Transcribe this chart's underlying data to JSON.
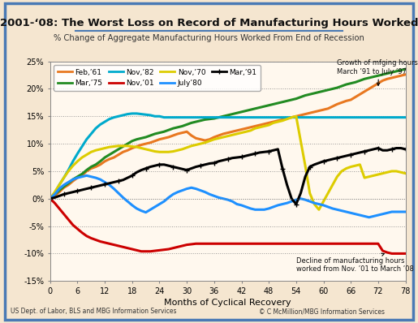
{
  "title": "2001-‘08: The Worst Loss on Record of Manufacturing Hours Worked",
  "subtitle": "% Change of Aggregate Manufacturing Hours Worked From End of Recession",
  "xlabel": "Months of Cyclical Recovery",
  "ylabel": "",
  "footer_left": "US Dept. of Labor, BLS and MBG Information Services",
  "footer_right": "© C McMillion/MBG Information Services",
  "bg_outer": "#f5e6d0",
  "bg_inner": "#fff8ee",
  "border_color": "#4a7ab5",
  "title_color": "#1a1a1a",
  "subtitle_color": "#333333",
  "annotation1": "Growth of mfging hours:\nMarch ’91 to July ’97",
  "annotation2": "Decline of manufacturing hours\nworked from Nov. ’01 to March ’08",
  "xlim": [
    0,
    78
  ],
  "ylim": [
    -0.15,
    0.25
  ],
  "yticks": [
    -0.15,
    -0.1,
    -0.05,
    0.0,
    0.05,
    0.1,
    0.15,
    0.2,
    0.25
  ],
  "ytick_labels": [
    "-15%",
    "-10%",
    "-5%",
    "0%",
    "5%",
    "10%",
    "15%",
    "20%",
    "25%"
  ],
  "xticks": [
    0,
    6,
    12,
    18,
    24,
    30,
    36,
    42,
    48,
    54,
    60,
    66,
    72,
    78
  ],
  "series": [
    {
      "label": "Feb,’61",
      "color": "#e87820",
      "lw": 2.2,
      "data": [
        0,
        0.005,
        0.012,
        0.02,
        0.025,
        0.032,
        0.038,
        0.042,
        0.05,
        0.055,
        0.058,
        0.062,
        0.068,
        0.072,
        0.075,
        0.08,
        0.085,
        0.088,
        0.092,
        0.095,
        0.098,
        0.1,
        0.102,
        0.105,
        0.108,
        0.11,
        0.112,
        0.115,
        0.118,
        0.12,
        0.122,
        0.115,
        0.11,
        0.108,
        0.106,
        0.108,
        0.112,
        0.115,
        0.118,
        0.12,
        0.122,
        0.124,
        0.126,
        0.128,
        0.13,
        0.132,
        0.134,
        0.136,
        0.138,
        0.14,
        0.142,
        0.144,
        0.146,
        0.148,
        0.15,
        0.152,
        0.154,
        0.156,
        0.158,
        0.16,
        0.162,
        0.164,
        0.168,
        0.172,
        0.175,
        0.178,
        0.18,
        0.185,
        0.19,
        0.195,
        0.2,
        0.205,
        0.21,
        0.215,
        0.218,
        0.22,
        0.222,
        0.224,
        0.226
      ]
    },
    {
      "label": "Mar,’75",
      "color": "#228B22",
      "lw": 2.2,
      "data": [
        0,
        0.008,
        0.015,
        0.022,
        0.028,
        0.035,
        0.04,
        0.045,
        0.052,
        0.058,
        0.062,
        0.068,
        0.075,
        0.08,
        0.085,
        0.09,
        0.095,
        0.1,
        0.105,
        0.108,
        0.11,
        0.112,
        0.115,
        0.118,
        0.12,
        0.122,
        0.125,
        0.128,
        0.13,
        0.132,
        0.135,
        0.138,
        0.14,
        0.142,
        0.144,
        0.145,
        0.146,
        0.148,
        0.15,
        0.152,
        0.154,
        0.156,
        0.158,
        0.16,
        0.162,
        0.164,
        0.166,
        0.168,
        0.17,
        0.172,
        0.174,
        0.176,
        0.178,
        0.18,
        0.182,
        0.185,
        0.188,
        0.19,
        0.192,
        0.194,
        0.196,
        0.198,
        0.2,
        0.202,
        0.205,
        0.208,
        0.21,
        0.212,
        0.215,
        0.218,
        0.22,
        0.222,
        0.224,
        0.226,
        0.228,
        0.23,
        0.232,
        0.234,
        0.236
      ]
    },
    {
      "label": "Nov,’82",
      "color": "#00aacc",
      "lw": 2.2,
      "data": [
        0,
        0.01,
        0.025,
        0.038,
        0.052,
        0.068,
        0.082,
        0.095,
        0.108,
        0.118,
        0.128,
        0.135,
        0.14,
        0.145,
        0.148,
        0.15,
        0.152,
        0.154,
        0.155,
        0.155,
        0.154,
        0.153,
        0.152,
        0.15,
        0.15,
        0.148,
        0.148,
        0.148,
        0.148,
        0.148,
        0.148,
        0.148,
        0.148,
        0.148,
        0.148,
        0.148,
        0.148,
        0.148,
        0.148,
        0.148,
        0.148,
        0.148,
        0.148,
        0.148,
        0.148,
        0.148,
        0.148,
        0.148,
        0.148,
        0.148,
        0.148,
        0.148,
        0.148,
        0.148,
        0.148,
        0.148,
        0.148,
        0.148,
        0.148,
        0.148,
        0.148,
        0.148,
        0.148,
        0.148,
        0.148,
        0.148,
        0.148,
        0.148,
        0.148,
        0.148,
        0.148,
        0.148,
        0.148,
        0.148,
        0.148,
        0.148,
        0.148,
        0.148,
        0.148
      ]
    },
    {
      "label": "Nov,’01",
      "color": "#cc0000",
      "lw": 2.2,
      "data": [
        0,
        -0.008,
        -0.018,
        -0.028,
        -0.038,
        -0.048,
        -0.055,
        -0.062,
        -0.068,
        -0.072,
        -0.075,
        -0.078,
        -0.08,
        -0.082,
        -0.084,
        -0.086,
        -0.088,
        -0.09,
        -0.092,
        -0.094,
        -0.096,
        -0.096,
        -0.096,
        -0.095,
        -0.094,
        -0.093,
        -0.092,
        -0.09,
        -0.088,
        -0.086,
        -0.084,
        -0.083,
        -0.082,
        -0.082,
        -0.082,
        -0.082,
        -0.082,
        -0.082,
        -0.082,
        -0.082,
        -0.082,
        -0.082,
        -0.082,
        -0.082,
        -0.082,
        -0.082,
        -0.082,
        -0.082,
        -0.082,
        -0.082,
        -0.082,
        -0.082,
        -0.082,
        -0.082,
        -0.082,
        -0.082,
        -0.082,
        -0.082,
        -0.082,
        -0.082,
        -0.082,
        -0.082,
        -0.082,
        -0.082,
        -0.082,
        -0.082,
        -0.082,
        -0.082,
        -0.082,
        -0.082,
        -0.082,
        -0.082,
        -0.082,
        -0.095,
        -0.098,
        -0.1,
        -0.1,
        -0.1,
        -0.1
      ]
    },
    {
      "label": "Nov,’70",
      "color": "#ddcc00",
      "lw": 2.2,
      "data": [
        0,
        0.012,
        0.025,
        0.038,
        0.05,
        0.06,
        0.068,
        0.075,
        0.08,
        0.085,
        0.088,
        0.09,
        0.092,
        0.094,
        0.095,
        0.096,
        0.096,
        0.096,
        0.095,
        0.094,
        0.092,
        0.09,
        0.088,
        0.086,
        0.085,
        0.085,
        0.085,
        0.086,
        0.088,
        0.09,
        0.093,
        0.096,
        0.098,
        0.1,
        0.102,
        0.105,
        0.108,
        0.11,
        0.112,
        0.114,
        0.116,
        0.118,
        0.12,
        0.122,
        0.124,
        0.128,
        0.13,
        0.132,
        0.134,
        0.138,
        0.14,
        0.142,
        0.145,
        0.148,
        0.15,
        0.105,
        0.06,
        0.01,
        -0.01,
        -0.02,
        -0.005,
        0.01,
        0.025,
        0.04,
        0.05,
        0.055,
        0.058,
        0.06,
        0.062,
        0.038,
        0.04,
        0.042,
        0.044,
        0.046,
        0.048,
        0.05,
        0.05,
        0.048,
        0.046
      ]
    },
    {
      "label": "July’80",
      "color": "#1e90ff",
      "lw": 2.2,
      "data": [
        0,
        0.008,
        0.018,
        0.025,
        0.03,
        0.035,
        0.038,
        0.04,
        0.042,
        0.04,
        0.038,
        0.035,
        0.03,
        0.025,
        0.018,
        0.01,
        0.002,
        -0.005,
        -0.012,
        -0.018,
        -0.022,
        -0.025,
        -0.02,
        -0.015,
        -0.01,
        -0.005,
        0.002,
        0.008,
        0.012,
        0.015,
        0.018,
        0.02,
        0.018,
        0.015,
        0.012,
        0.008,
        0.005,
        0.002,
        0.0,
        -0.002,
        -0.005,
        -0.01,
        -0.012,
        -0.015,
        -0.018,
        -0.02,
        -0.02,
        -0.02,
        -0.018,
        -0.015,
        -0.012,
        -0.01,
        -0.008,
        -0.005,
        -0.002,
        0.0,
        -0.002,
        -0.005,
        -0.008,
        -0.01,
        -0.012,
        -0.015,
        -0.018,
        -0.02,
        -0.022,
        -0.024,
        -0.026,
        -0.028,
        -0.03,
        -0.032,
        -0.034,
        -0.032,
        -0.03,
        -0.028,
        -0.026,
        -0.024,
        -0.024,
        -0.024,
        -0.024
      ]
    },
    {
      "label": "Mar,’91",
      "color": "#000000",
      "lw": 2.2,
      "marker": "+",
      "data": [
        0,
        0.002,
        0.005,
        0.008,
        0.01,
        0.012,
        0.014,
        0.016,
        0.018,
        0.02,
        0.022,
        0.024,
        0.026,
        0.028,
        0.03,
        0.032,
        0.034,
        0.038,
        0.042,
        0.048,
        0.052,
        0.055,
        0.058,
        0.06,
        0.062,
        0.062,
        0.06,
        0.058,
        0.056,
        0.054,
        0.052,
        0.055,
        0.058,
        0.06,
        0.062,
        0.064,
        0.065,
        0.068,
        0.07,
        0.072,
        0.074,
        0.075,
        0.076,
        0.078,
        0.08,
        0.082,
        0.084,
        0.085,
        0.086,
        0.088,
        0.09,
        0.055,
        0.025,
        0.0,
        -0.01,
        0.01,
        0.04,
        0.058,
        0.062,
        0.065,
        0.068,
        0.07,
        0.072,
        0.074,
        0.076,
        0.078,
        0.08,
        0.082,
        0.084,
        0.086,
        0.088,
        0.09,
        0.092,
        0.088,
        0.088,
        0.09,
        0.092,
        0.092,
        0.09
      ]
    }
  ]
}
